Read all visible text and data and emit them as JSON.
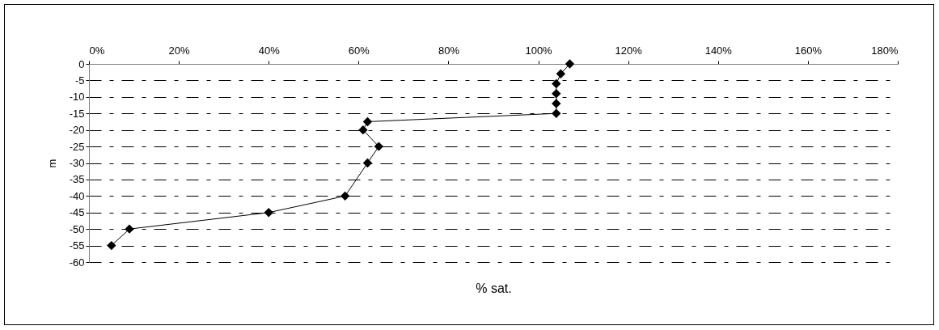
{
  "chart_data": {
    "type": "line",
    "xlabel": "% sat.",
    "ylabel": "m",
    "x": [
      107,
      105,
      104,
      104,
      104,
      104,
      62,
      61,
      64.5,
      62,
      57,
      40,
      9,
      5
    ],
    "series": [
      {
        "color": "#000000",
        "values": [
          0,
          -3,
          -6,
          -9,
          -12,
          -15,
          -17.5,
          -20,
          -25,
          -30,
          -40,
          -45,
          -50,
          -55
        ]
      }
    ],
    "xlim": [
      0,
      180
    ],
    "xticks": [
      {
        "value": 0,
        "label": "0%"
      },
      {
        "value": 20,
        "label": "20%"
      },
      {
        "value": 40,
        "label": "40%"
      },
      {
        "value": 60,
        "label": "60%"
      },
      {
        "value": 80,
        "label": "80%"
      },
      {
        "value": 100,
        "label": "100%"
      },
      {
        "value": 120,
        "label": "120%"
      },
      {
        "value": 140,
        "label": "140%"
      },
      {
        "value": 160,
        "label": "160%"
      },
      {
        "value": 180,
        "label": "180%"
      }
    ],
    "ylim": [
      -60,
      0
    ],
    "yticks": [
      0,
      -5,
      -10,
      -15,
      -20,
      -25,
      -30,
      -35,
      -40,
      -45,
      -50,
      -55,
      -60
    ],
    "grid": "y",
    "marker": "diamond",
    "line_style": "solid"
  }
}
